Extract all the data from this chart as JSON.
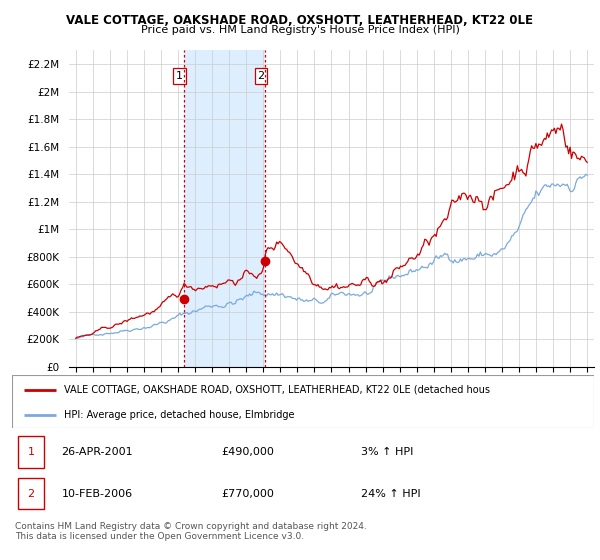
{
  "title": "VALE COTTAGE, OAKSHADE ROAD, OXSHOTT, LEATHERHEAD, KT22 0LE",
  "subtitle": "Price paid vs. HM Land Registry's House Price Index (HPI)",
  "ylim": [
    0,
    2300000
  ],
  "yticks": [
    0,
    200000,
    400000,
    600000,
    800000,
    1000000,
    1200000,
    1400000,
    1600000,
    1800000,
    2000000,
    2200000
  ],
  "ytick_labels": [
    "£0",
    "£200K",
    "£400K",
    "£600K",
    "£800K",
    "£1M",
    "£1.2M",
    "£1.4M",
    "£1.6M",
    "£1.8M",
    "£2M",
    "£2.2M"
  ],
  "xticks": [
    1995,
    1996,
    1997,
    1998,
    1999,
    2000,
    2001,
    2002,
    2003,
    2004,
    2005,
    2006,
    2007,
    2008,
    2009,
    2010,
    2011,
    2012,
    2013,
    2014,
    2015,
    2016,
    2017,
    2018,
    2019,
    2020,
    2021,
    2022,
    2023,
    2024,
    2025
  ],
  "sale1_year": 2001.32,
  "sale1_price": 490000,
  "sale2_year": 2006.11,
  "sale2_price": 770000,
  "sale1_label": "1",
  "sale2_label": "2",
  "sale1_date": "26-APR-2001",
  "sale2_date": "10-FEB-2006",
  "sale1_hpi": "3% ↑ HPI",
  "sale2_hpi": "24% ↑ HPI",
  "legend_line1": "VALE COTTAGE, OAKSHADE ROAD, OXSHOTT, LEATHERHEAD, KT22 0LE (detached hous",
  "legend_line2": "HPI: Average price, detached house, Elmbridge",
  "line_color": "#cc0000",
  "hpi_color": "#7aaadd",
  "vline_color": "#cc0000",
  "shade_color": "#ddeeff",
  "footer": "Contains HM Land Registry data © Crown copyright and database right 2024.\nThis data is licensed under the Open Government Licence v3.0.",
  "bg_color": "#f0f4ff"
}
